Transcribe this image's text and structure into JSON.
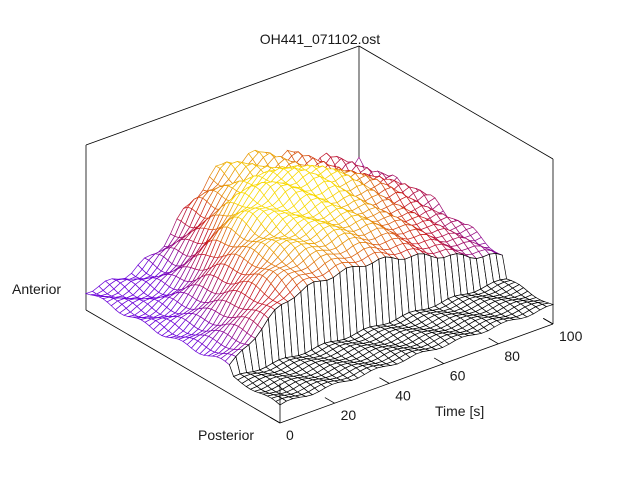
{
  "chart_data": {
    "type": "surface",
    "title": "OH441_071102.ost",
    "x_axis": {
      "label": "Time [s]",
      "range": [
        0,
        100
      ],
      "ticks": [
        0,
        20,
        40,
        60,
        80,
        100
      ]
    },
    "y_axis": {
      "label_start": "Posterior",
      "label_end": "Anterior"
    },
    "grid": false,
    "style": "3D wireframe mesh, colour by height (purple-red-orange-yellow); flat black trace at the posterior edge",
    "colors": {
      "low": "#6a00d8",
      "mid": "#c8181e",
      "high": "#f8d800",
      "flat": "#000000"
    }
  }
}
